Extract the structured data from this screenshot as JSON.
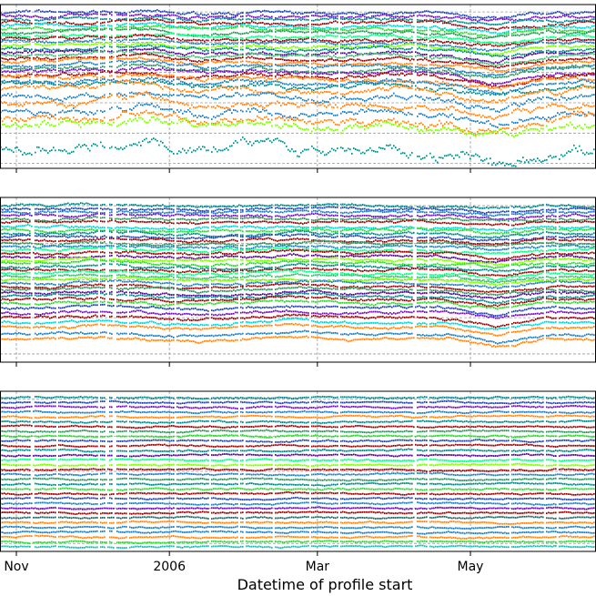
{
  "chart_data": {
    "type": "scatter",
    "xlabel": "Datetime of profile start",
    "x_units": "days since 2005-11-01",
    "xlim": [
      -6.5,
      231
    ],
    "xticks": [
      {
        "value": 0,
        "label": "Nov"
      },
      {
        "value": 61,
        "label": "2006"
      },
      {
        "value": 120,
        "label": "Mar"
      },
      {
        "value": 181,
        "label": "May"
      }
    ],
    "grid": true,
    "palette": [
      "#1f3fa0",
      "#6a0dad",
      "#8b0000",
      "#008080",
      "#32cd32",
      "#00ff7f",
      "#1f77b4",
      "#ff7f0e",
      "#2e8b57",
      "#4b0082",
      "#00ced1",
      "#7cfc00",
      "#a52a2a",
      "#3cb371"
    ],
    "panels": [
      {
        "ylim": [
          0,
          100
        ],
        "yticks": [
          3,
          21.5,
          40,
          58.5,
          77,
          95.5
        ],
        "trend_knots": [
          0,
          0,
          1,
          2,
          -1,
          0,
          -1,
          -1,
          0,
          -2,
          -6,
          -1,
          0
        ],
        "levels": [
          95,
          93,
          91,
          89,
          87,
          85,
          83,
          81,
          79,
          77,
          75,
          73,
          71,
          69,
          67,
          65,
          63,
          61,
          59,
          57,
          55,
          53,
          51,
          48,
          44,
          40,
          34,
          30,
          26,
          12
        ],
        "noise": [
          1,
          1,
          1,
          1,
          1,
          1,
          1,
          1,
          1,
          1,
          1,
          1,
          1,
          1,
          1,
          1,
          1,
          1.2,
          1.2,
          1.2,
          1.4,
          1.4,
          1.5,
          1.6,
          1.8,
          2,
          2.2,
          2.4,
          2.6,
          3.5
        ],
        "colors": [
          "#1f3fa0",
          "#6a0dad",
          "#008080",
          "#8b0000",
          "#00ced1",
          "#32cd32",
          "#2e8b57",
          "#00ff7f",
          "#8b0000",
          "#1f77b4",
          "#7cfc00",
          "#008080",
          "#4b0082",
          "#3cb371",
          "#8b0000",
          "#ff7f0e",
          "#1f77b4",
          "#2e8b57",
          "#6a0dad",
          "#8b0000",
          "#ff7f0e",
          "#1f77b4",
          "#008080",
          "#ff7f0e",
          "#1f77b4",
          "#ff7f0e",
          "#1f77b4",
          "#ff7f0e",
          "#7cfc00",
          "#008b8b"
        ]
      },
      {
        "ylim": [
          0,
          100
        ],
        "yticks": [
          5,
          27,
          50,
          72,
          95
        ],
        "trend_knots": [
          0,
          0,
          1,
          0,
          -1,
          0,
          1,
          0,
          0,
          0,
          -3,
          0,
          0
        ],
        "levels": [
          95,
          93,
          91,
          89,
          87,
          85,
          82,
          80,
          78,
          76,
          74,
          72,
          70,
          68,
          66,
          64,
          62,
          60,
          58,
          56,
          54,
          52,
          50,
          48,
          46,
          44,
          42,
          40,
          38,
          36,
          33,
          30,
          27,
          24,
          21,
          17,
          14
        ],
        "noise": [
          0.8
        ],
        "colors": [
          "#008080",
          "#1f3fa0",
          "#1f77b4",
          "#6a0dad",
          "#2e8b57",
          "#8b0000",
          "#00ced1",
          "#32cd32",
          "#008080",
          "#1f3fa0",
          "#8b0000",
          "#2e8b57",
          "#1f77b4",
          "#00ff7f",
          "#8b0000",
          "#4b0082",
          "#7cfc00",
          "#32cd32",
          "#008080",
          "#8b0000",
          "#00ff7f",
          "#3cb371",
          "#7cfc00",
          "#1f77b4",
          "#8b0000",
          "#2e8b57",
          "#4b0082",
          "#008080",
          "#8b0000",
          "#32cd32",
          "#1f3fa0",
          "#6a0dad",
          "#8b0000",
          "#00ced1",
          "#ff7f0e",
          "#1f77b4",
          "#ff7f0e"
        ]
      },
      {
        "ylim": [
          0,
          100
        ],
        "yticks": [
          5,
          27,
          50,
          72,
          95
        ],
        "trend_knots": [
          0,
          0,
          0,
          0,
          0,
          0,
          0,
          0,
          0,
          0,
          0,
          0,
          0
        ],
        "levels": [
          96,
          93,
          90,
          87,
          84,
          81,
          78,
          75,
          72,
          69,
          66,
          63,
          60,
          57,
          54,
          51,
          48,
          45,
          42,
          39,
          36,
          33,
          30,
          27,
          24,
          21,
          18,
          15,
          12,
          9,
          6,
          3
        ],
        "noise": [
          0.5
        ],
        "colors": [
          "#008080",
          "#1f3fa0",
          "#6a0dad",
          "#1f77b4",
          "#ff7f0e",
          "#008080",
          "#8b0000",
          "#2e8b57",
          "#32cd32",
          "#1f3fa0",
          "#8b0000",
          "#008080",
          "#4b0082",
          "#00ff7f",
          "#7cfc00",
          "#8b0000",
          "#1f77b4",
          "#2e8b57",
          "#008080",
          "#32cd32",
          "#8b0000",
          "#1f3fa0",
          "#1f77b4",
          "#6a0dad",
          "#8b0000",
          "#1f5f5f",
          "#ff7f0e",
          "#1f77b4",
          "#1f77b4",
          "#ff7f0e",
          "#32cd32",
          "#20b2aa"
        ]
      }
    ]
  }
}
